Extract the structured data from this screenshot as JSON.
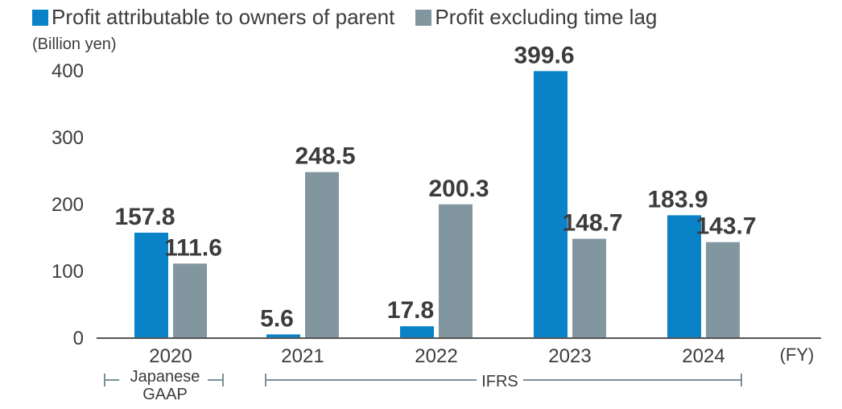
{
  "legend": {
    "series1": "Profit attributable to owners of parent",
    "series2": "Profit excluding time lag"
  },
  "unit_label": "(Billion yen)",
  "x_unit_label": "(FY)",
  "groups": {
    "japanese_gaap": [
      "Japanese",
      "GAAP"
    ],
    "ifrs": "IFRS"
  },
  "colors": {
    "series1": "#0a82c8",
    "series2": "#8296a0",
    "axis": "#555555",
    "bracket": "#7a9098"
  },
  "chart_data": {
    "type": "bar",
    "categories": [
      "2020",
      "2021",
      "2022",
      "2023",
      "2024"
    ],
    "series": [
      {
        "name": "Profit attributable to owners of parent",
        "values": [
          157.8,
          5.6,
          17.8,
          399.6,
          183.9
        ]
      },
      {
        "name": "Profit excluding time lag",
        "values": [
          111.6,
          248.5,
          200.3,
          148.7,
          143.7
        ]
      }
    ],
    "ylabel": "(Billion yen)",
    "xlabel": "(FY)",
    "ylim": [
      0,
      400
    ],
    "yticks": [
      0,
      100,
      200,
      300,
      400
    ],
    "grid": false,
    "legend_position": "top-left"
  }
}
